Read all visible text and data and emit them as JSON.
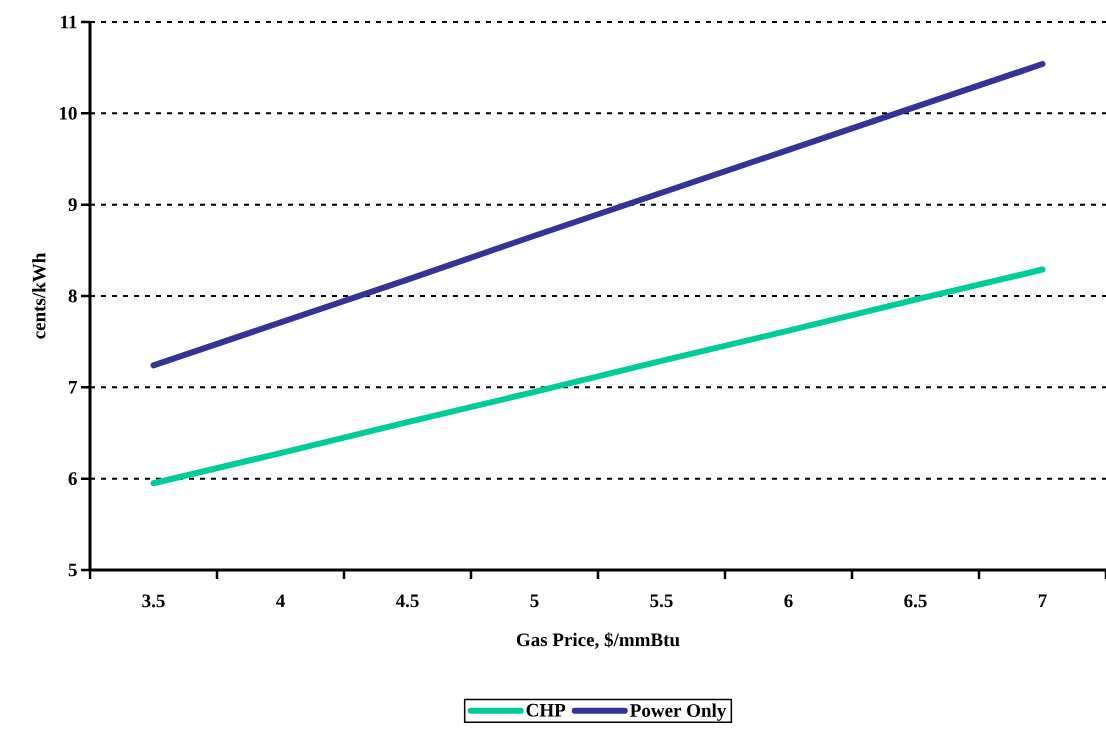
{
  "chart_data": {
    "type": "line",
    "xlabel": "Gas Price, $/mmBtu",
    "ylabel": "cents/kWh",
    "categories": [
      "3.5",
      "4",
      "4.5",
      "5",
      "5.5",
      "6",
      "6.5",
      "7"
    ],
    "series": [
      {
        "name": "CHP",
        "color": "#00cc99",
        "values": [
          5.95,
          6.28,
          6.62,
          6.95,
          7.29,
          7.62,
          7.96,
          8.29
        ]
      },
      {
        "name": "Power Only",
        "color": "#333399",
        "values": [
          7.24,
          7.71,
          8.18,
          8.66,
          9.13,
          9.6,
          10.07,
          10.54
        ]
      }
    ],
    "ylim": [
      5,
      11
    ],
    "yticks": [
      5,
      6,
      7,
      8,
      9,
      10,
      11
    ],
    "grid": "y",
    "legend": "bottom",
    "marker": "none",
    "line_style": "solid"
  }
}
